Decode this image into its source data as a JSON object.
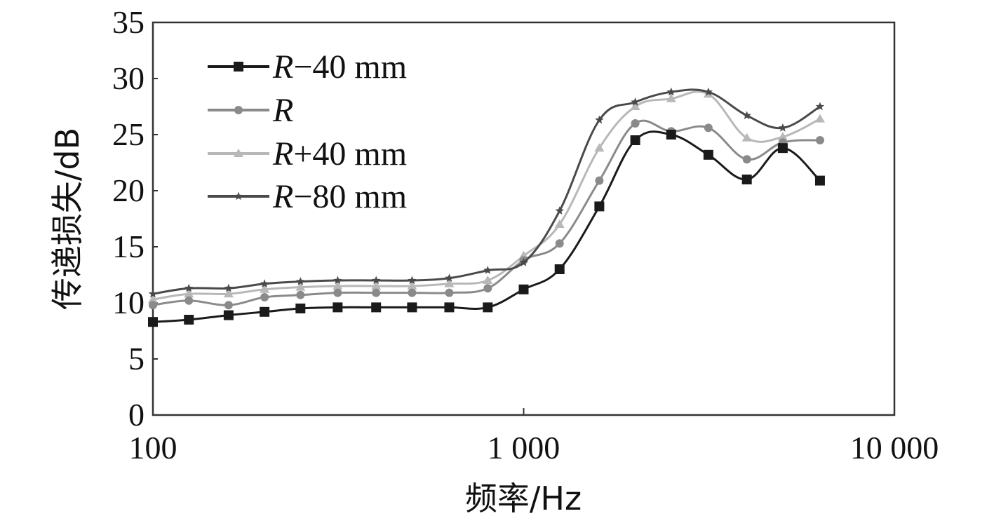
{
  "chart_data": {
    "type": "line",
    "xscale": "log",
    "xlim": [
      100,
      10000
    ],
    "ylim": [
      0,
      35
    ],
    "xticks": [
      100,
      1000,
      10000
    ],
    "xtick_labels": [
      "100",
      "1 000",
      "10 000"
    ],
    "yticks": [
      0,
      5,
      10,
      15,
      20,
      25,
      30,
      35
    ],
    "ytick_labels": [
      "0",
      "5",
      "10",
      "15",
      "20",
      "25",
      "30",
      "35"
    ],
    "xlabel": "频率/Hz",
    "ylabel": "传递损失/dB",
    "grid": false,
    "legend_position": "top-left",
    "x": [
      100,
      125,
      160,
      200,
      250,
      315,
      400,
      500,
      630,
      800,
      1000,
      1250,
      1600,
      2000,
      2500,
      3150,
      4000,
      5000,
      6300
    ],
    "series": [
      {
        "name": "R−40 mm",
        "legend_parts": [
          "R",
          "−40 mm"
        ],
        "marker": "square",
        "color": "#1a1a1a",
        "values": [
          8.3,
          8.5,
          8.9,
          9.2,
          9.5,
          9.6,
          9.6,
          9.6,
          9.6,
          9.6,
          11.2,
          13.0,
          18.6,
          24.5,
          25.0,
          23.2,
          21.0,
          23.8,
          20.9
        ]
      },
      {
        "name": "R",
        "legend_parts": [
          "R",
          ""
        ],
        "marker": "circle",
        "color": "#8a8a8a",
        "values": [
          9.8,
          10.2,
          9.8,
          10.5,
          10.7,
          10.9,
          10.9,
          10.9,
          10.9,
          11.3,
          13.8,
          15.3,
          20.9,
          26.0,
          25.3,
          25.6,
          22.8,
          24.3,
          24.5
        ]
      },
      {
        "name": "R+40 mm",
        "legend_parts": [
          "R",
          "+40 mm"
        ],
        "marker": "triangle",
        "color": "#b8b8b8",
        "values": [
          10.3,
          10.8,
          10.8,
          11.2,
          11.4,
          11.5,
          11.5,
          11.5,
          11.7,
          12.0,
          14.2,
          17.0,
          23.8,
          27.5,
          28.2,
          28.6,
          24.7,
          24.8,
          26.4
        ]
      },
      {
        "name": "R−80 mm",
        "legend_parts": [
          "R",
          "−80 mm"
        ],
        "marker": "star",
        "color": "#4a4a4a",
        "values": [
          10.8,
          11.3,
          11.3,
          11.7,
          11.9,
          12.0,
          12.0,
          12.0,
          12.2,
          12.9,
          13.6,
          18.2,
          26.3,
          27.9,
          28.8,
          28.8,
          26.7,
          25.6,
          27.5
        ]
      }
    ]
  }
}
